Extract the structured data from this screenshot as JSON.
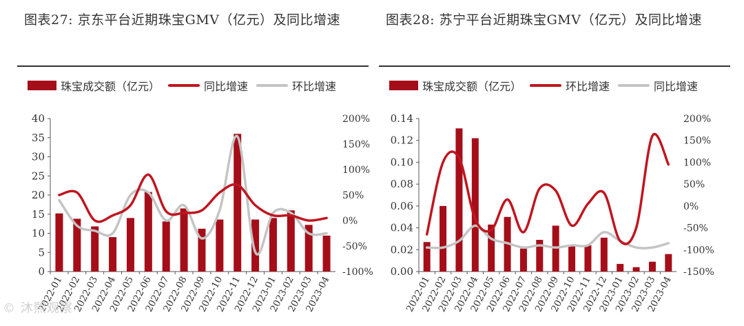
{
  "colors": {
    "bar": "#a50e19",
    "yoy_line": "#c0151f",
    "mom_line": "#c4c4c4"
  },
  "watermark": "© 沐熙观察",
  "chart_data": [
    {
      "type": "bar+line",
      "title": "图表27:  京东平台近期珠宝GMV（亿元）及同比增速",
      "legend": [
        "珠宝成交额（亿元）",
        "同比增速",
        "环比增速"
      ],
      "categories": [
        "2022-01",
        "2022-02",
        "2022-03",
        "2022-04",
        "2022-05",
        "2022-06",
        "2022-07",
        "2022-08",
        "2022-09",
        "2022-10",
        "2022-11",
        "2022-12",
        "2023-01",
        "2023-02",
        "2023-03",
        "2023-04"
      ],
      "bars": {
        "name": "珠宝成交额（亿元）",
        "values": [
          15.2,
          13.8,
          11.8,
          9.0,
          14.0,
          20.8,
          13.1,
          16.5,
          11.2,
          13.6,
          36.0,
          13.6,
          14.0,
          16.0,
          12.2,
          9.4
        ]
      },
      "series": [
        {
          "name": "同比增速",
          "axis": "right",
          "color_key": "yoy_line",
          "values": [
            50,
            55,
            0,
            10,
            30,
            90,
            18,
            15,
            20,
            55,
            70,
            30,
            10,
            10,
            0,
            5
          ]
        },
        {
          "name": "环比增速",
          "axis": "right",
          "color_key": "mom_line",
          "values": [
            40,
            -10,
            -20,
            -25,
            50,
            55,
            0,
            30,
            -35,
            20,
            165,
            -62,
            15,
            15,
            -25,
            -25
          ]
        }
      ],
      "left_axis": {
        "min": 0,
        "max": 40,
        "ticks": [
          "0",
          "5",
          "10",
          "15",
          "20",
          "25",
          "30",
          "35",
          "40"
        ]
      },
      "right_axis": {
        "min": -100,
        "max": 200,
        "ticks": [
          "-100%",
          "-50%",
          "0%",
          "50%",
          "100%",
          "150%",
          "200%"
        ]
      }
    },
    {
      "type": "bar+line",
      "title": "图表28:  苏宁平台近期珠宝GMV（亿元）及同比增速",
      "legend": [
        "珠宝成交额（亿元）",
        "环比增速",
        "同比增速"
      ],
      "categories": [
        "2022-01",
        "2022-02",
        "2022-03",
        "2022-04",
        "2022-05",
        "2022-06",
        "2022-07",
        "2022-08",
        "2022-09",
        "2022-10",
        "2022-11",
        "2022-12",
        "2023-01",
        "2023-02",
        "2023-03",
        "2023-04"
      ],
      "bars": {
        "name": "珠宝成交额（亿元）",
        "values": [
          0.027,
          0.06,
          0.131,
          0.122,
          0.043,
          0.05,
          0.021,
          0.029,
          0.042,
          0.024,
          0.024,
          0.031,
          0.007,
          0.004,
          0.009,
          0.016
        ]
      },
      "series": [
        {
          "name": "环比增速",
          "axis": "right",
          "color_key": "yoy_line",
          "values": [
            -65,
            100,
            110,
            -30,
            -55,
            15,
            -60,
            40,
            35,
            -45,
            5,
            30,
            -80,
            -50,
            160,
            95
          ]
        },
        {
          "name": "同比增速",
          "axis": "right",
          "color_key": "mom_line",
          "values": [
            -95,
            -95,
            -80,
            -45,
            -75,
            -85,
            -95,
            -90,
            -95,
            -90,
            -90,
            -60,
            -80,
            -95,
            -95,
            -85
          ]
        }
      ],
      "left_axis": {
        "min": 0,
        "max": 0.14,
        "ticks": [
          "0.00",
          "0.02",
          "0.04",
          "0.06",
          "0.08",
          "0.10",
          "0.12",
          "0.14"
        ]
      },
      "right_axis": {
        "min": -150,
        "max": 200,
        "ticks": [
          "-150%",
          "-100%",
          "-50%",
          "0%",
          "50%",
          "100%",
          "150%",
          "200%"
        ]
      }
    }
  ]
}
